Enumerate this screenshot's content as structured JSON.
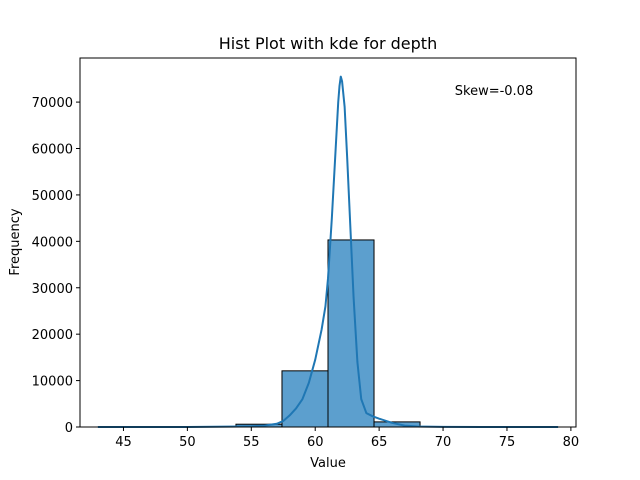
{
  "chart_data": {
    "type": "bar",
    "title": "Hist Plot with kde for depth",
    "xlabel": "Value",
    "ylabel": "Frequency",
    "xlim": [
      41.6,
      80.4
    ],
    "ylim": [
      0,
      79500
    ],
    "xticks": [
      45,
      50,
      55,
      60,
      65,
      70,
      75,
      80
    ],
    "yticks": [
      0,
      10000,
      20000,
      30000,
      40000,
      50000,
      60000,
      70000
    ],
    "annotation": "Skew=-0.08",
    "bar_color": "#5c9fce",
    "kde_color": "#1f77b4",
    "bins": [
      {
        "x0": 43.0,
        "x1": 46.6,
        "value": 2
      },
      {
        "x0": 46.6,
        "x1": 50.2,
        "value": 5
      },
      {
        "x0": 50.2,
        "x1": 53.8,
        "value": 30
      },
      {
        "x0": 53.8,
        "x1": 57.4,
        "value": 600
      },
      {
        "x0": 57.4,
        "x1": 61.0,
        "value": 12100
      },
      {
        "x0": 61.0,
        "x1": 64.6,
        "value": 40300
      },
      {
        "x0": 64.6,
        "x1": 68.2,
        "value": 1100
      },
      {
        "x0": 68.2,
        "x1": 71.8,
        "value": 40
      },
      {
        "x0": 71.8,
        "x1": 75.4,
        "value": 5
      },
      {
        "x0": 75.4,
        "x1": 79.0,
        "value": 2
      }
    ],
    "kde": {
      "x": [
        43,
        50,
        54,
        55,
        56,
        57,
        57.5,
        58,
        58.5,
        59,
        59.5,
        60,
        60.5,
        60.8,
        61.0,
        61.3,
        61.6,
        61.8,
        61.9,
        62.0,
        62.1,
        62.3,
        62.5,
        62.8,
        63.0,
        63.3,
        63.6,
        64.0,
        64.5,
        65,
        66,
        67,
        68,
        70,
        73,
        79
      ],
      "y": [
        0,
        0,
        100,
        150,
        300,
        700,
        1300,
        2500,
        4000,
        6000,
        9500,
        14500,
        21000,
        26000,
        32000,
        45000,
        60000,
        70000,
        73500,
        75500,
        74500,
        69000,
        58000,
        40000,
        28000,
        14000,
        6000,
        3000,
        2300,
        1800,
        900,
        300,
        120,
        20,
        0,
        0
      ]
    }
  }
}
